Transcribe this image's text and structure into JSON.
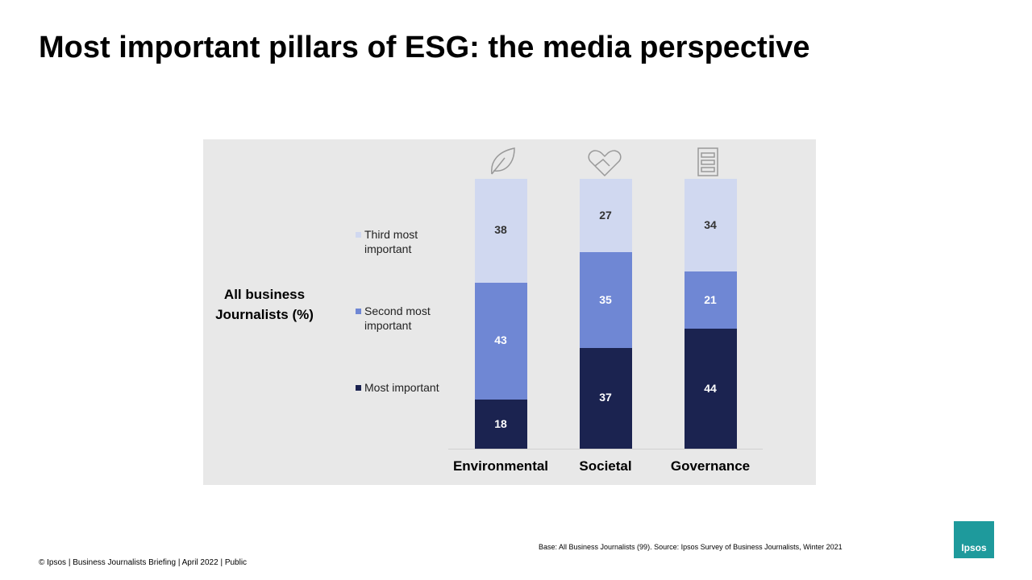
{
  "title": "Most important pillars of ESG: the media perspective",
  "chart_data": {
    "type": "stacked_bar",
    "y_label": "All business Journalists (%)",
    "categories": [
      "Environmental",
      "Societal",
      "Governance"
    ],
    "series": [
      {
        "name": "Most important",
        "color": "#1b2350",
        "values": [
          18,
          37,
          44
        ]
      },
      {
        "name": "Second most important",
        "color": "#6f87d4",
        "values": [
          43,
          35,
          21
        ]
      },
      {
        "name": "Third most important",
        "color": "#d0d8f0",
        "values": [
          38,
          27,
          34
        ]
      }
    ]
  },
  "footer": {
    "source": "Base: All Business Journalists (99). Source: Ipsos Survey of Business Journalists, Winter 2021",
    "copyright": "© Ipsos | Business Journalists Briefing | April 2022 | Public",
    "logo": "Ipsos"
  }
}
